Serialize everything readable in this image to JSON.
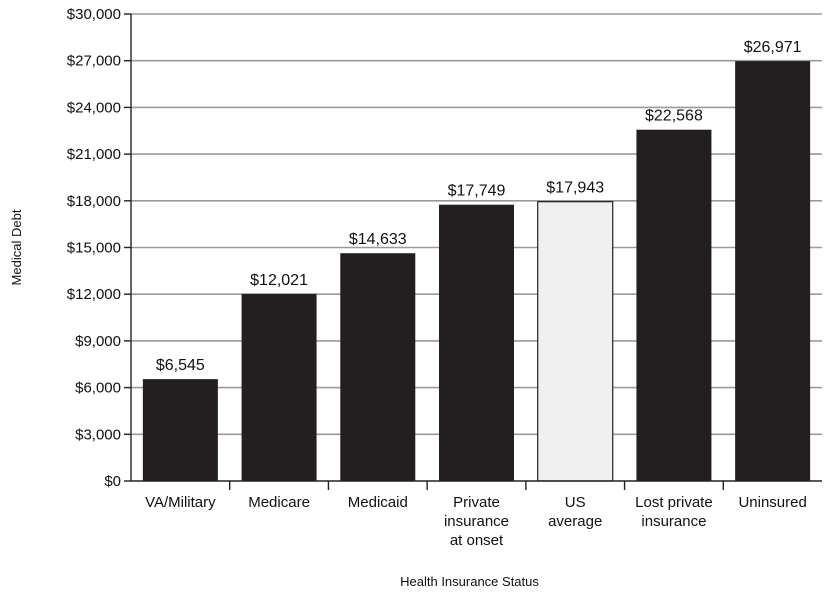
{
  "chart_data": {
    "type": "bar",
    "title": "",
    "xlabel": "Health Insurance Status",
    "ylabel": "Medical Debt",
    "ylim": [
      0,
      30000
    ],
    "yticks": [
      0,
      3000,
      6000,
      9000,
      12000,
      15000,
      18000,
      21000,
      24000,
      27000,
      30000
    ],
    "ytick_labels": [
      "$0",
      "$3,000",
      "$6,000",
      "$9,000",
      "$12,000",
      "$15,000",
      "$18,000",
      "$21,000",
      "$24,000",
      "$27,000",
      "$30,000"
    ],
    "grid": "horizontal",
    "categories": [
      [
        "VA/Military"
      ],
      [
        "Medicare"
      ],
      [
        "Medicaid"
      ],
      [
        "Private",
        "insurance",
        "at onset"
      ],
      [
        "US",
        "average"
      ],
      [
        "Lost private",
        "insurance"
      ],
      [
        "Uninsured"
      ]
    ],
    "values": [
      6545,
      12021,
      14633,
      17749,
      17943,
      22568,
      26971
    ],
    "value_labels": [
      "$6,545",
      "$12,021",
      "$14,633",
      "$17,749",
      "$17,943",
      "$22,568",
      "$26,971"
    ],
    "colors": [
      "#231f20",
      "#231f20",
      "#231f20",
      "#231f20",
      "#f0f0f0",
      "#231f20",
      "#231f20"
    ]
  }
}
